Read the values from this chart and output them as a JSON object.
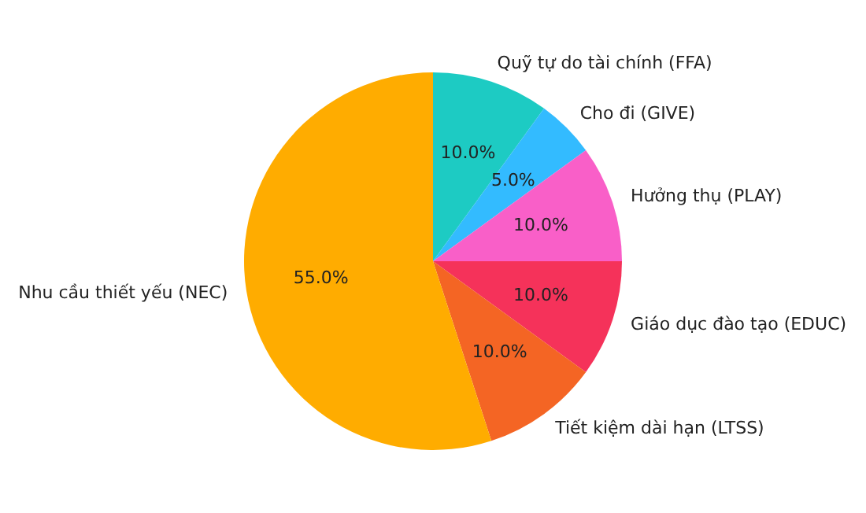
{
  "chart_data": {
    "type": "pie",
    "categories": [
      "Quỹ tự do tài chính (FFA)",
      "Cho đi (GIVE)",
      "Hưởng thụ (PLAY)",
      "Giáo dục đào tạo (EDUC)",
      "Tiết kiệm dài hạn (LTSS)",
      "Nhu cầu thiết yếu (NEC)"
    ],
    "values": [
      10,
      5,
      10,
      10,
      10,
      55
    ],
    "value_labels": [
      "10.0%",
      "5.0%",
      "10.0%",
      "10.0%",
      "10.0%",
      "55.0%"
    ],
    "colors": [
      "#1dcbc3",
      "#33bbff",
      "#f95fc8",
      "#f5325a",
      "#f46524",
      "#ffac00"
    ],
    "legend": false
  }
}
